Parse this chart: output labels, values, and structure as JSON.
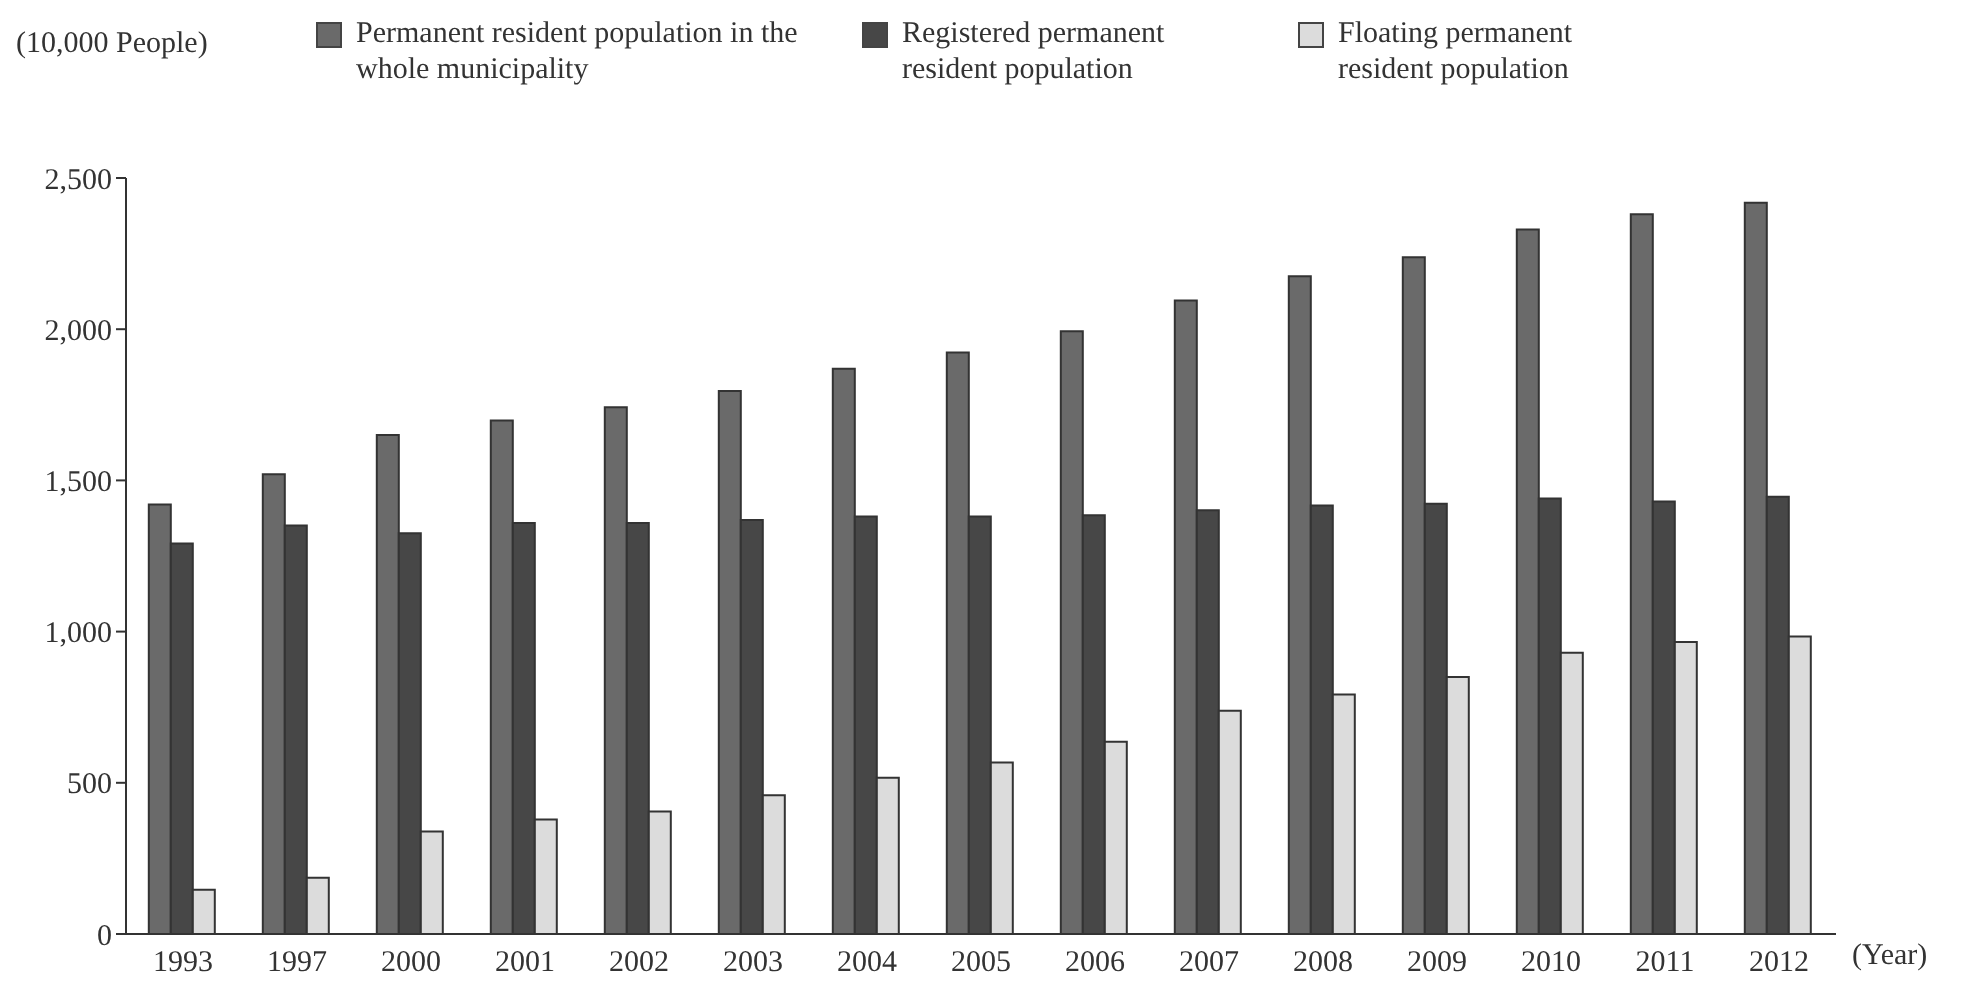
{
  "chart_data": {
    "type": "bar",
    "ylabel": "(10,000 People)",
    "xlabel": "(Year)",
    "categories": [
      "1993",
      "1997",
      "2000",
      "2001",
      "2002",
      "2003",
      "2004",
      "2005",
      "2006",
      "2007",
      "2008",
      "2009",
      "2010",
      "2011",
      "2012"
    ],
    "series": [
      {
        "name": "Permanent resident population in the whole municipality",
        "color": "#6a6a6a",
        "values": [
          1420,
          1520,
          1650,
          1698,
          1742,
          1796,
          1869,
          1923,
          1993,
          2095,
          2175,
          2238,
          2330,
          2380,
          2418
        ]
      },
      {
        "name": "Registered permanent resident population",
        "color": "#474747",
        "values": [
          1291,
          1351,
          1325,
          1359,
          1359,
          1369,
          1381,
          1381,
          1385,
          1401,
          1417,
          1423,
          1440,
          1430,
          1446
        ]
      },
      {
        "name": "Floating permanent resident population",
        "color": "#dcdcdc",
        "values": [
          146,
          186,
          339,
          379,
          405,
          459,
          517,
          567,
          636,
          738,
          792,
          850,
          930,
          966,
          984
        ]
      }
    ],
    "ylim": [
      0,
      2500
    ],
    "yticks": [
      {
        "value": 0,
        "label": "0"
      },
      {
        "value": 500,
        "label": "500"
      },
      {
        "value": 1000,
        "label": "1,000"
      },
      {
        "value": 1500,
        "label": "1,500"
      },
      {
        "value": 2000,
        "label": "2,000"
      },
      {
        "value": 2500,
        "label": "2,500"
      }
    ],
    "grid": false,
    "legend": "top"
  }
}
